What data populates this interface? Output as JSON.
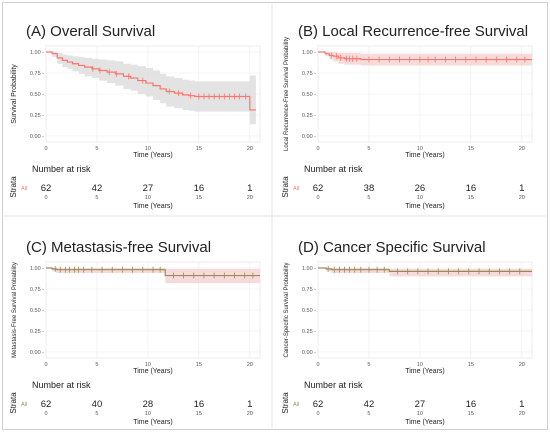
{
  "chart_data": [
    {
      "type": "line",
      "title": "(A) Overall Survival",
      "xlabel": "Time (Years)",
      "ylabel": "Survival Probability",
      "xlim": [
        0,
        21
      ],
      "ylim": [
        0,
        1
      ],
      "xticks": [
        "0",
        "5",
        "10",
        "15",
        "20"
      ],
      "yticks": [
        "0.00 -",
        "0.25 -",
        "0.50 -",
        "0.75 -",
        "1.00 -"
      ],
      "color": "#f8766d",
      "ci_color": "#d9d9d9",
      "series": [
        {
          "x": [
            0,
            0.6,
            1.1,
            1.6,
            2.1,
            2.6,
            3.2,
            3.8,
            4.5,
            5.2,
            6.0,
            6.8,
            7.6,
            8.3,
            9.0,
            9.8,
            10.5,
            11.2,
            11.8,
            12.6,
            13.4,
            14.0,
            14.6,
            20.0,
            20.6
          ],
          "y": [
            1.0,
            0.98,
            0.93,
            0.9,
            0.88,
            0.86,
            0.84,
            0.82,
            0.8,
            0.78,
            0.76,
            0.74,
            0.71,
            0.69,
            0.66,
            0.63,
            0.6,
            0.56,
            0.53,
            0.51,
            0.49,
            0.48,
            0.47,
            0.31,
            0.31
          ]
        }
      ],
      "ci_upper": [
        1.0,
        1.0,
        0.99,
        0.97,
        0.96,
        0.95,
        0.94,
        0.93,
        0.92,
        0.91,
        0.9,
        0.89,
        0.86,
        0.85,
        0.83,
        0.81,
        0.78,
        0.74,
        0.71,
        0.69,
        0.67,
        0.66,
        0.65,
        0.72,
        0.72
      ],
      "ci_lower": [
        1.0,
        0.94,
        0.86,
        0.82,
        0.8,
        0.77,
        0.74,
        0.71,
        0.69,
        0.66,
        0.63,
        0.6,
        0.56,
        0.54,
        0.5,
        0.47,
        0.43,
        0.39,
        0.35,
        0.33,
        0.31,
        0.3,
        0.29,
        0.14,
        0.14
      ],
      "censor_x": [
        4.6,
        5.3,
        6.2,
        6.9,
        8.1,
        9.5,
        12.1,
        13.0,
        14.2,
        15.0,
        15.5,
        16.0,
        16.5,
        17.0,
        17.5,
        18.0,
        18.5,
        19.0,
        19.6
      ],
      "risk_table": {
        "title": "Number at risk",
        "strata_label": "Strata",
        "row_label": "All",
        "counts": [
          "62",
          "42",
          "27",
          "16",
          "1"
        ],
        "ticks": [
          "0",
          "5",
          "10",
          "15",
          "20"
        ],
        "xlabel": "Time (Years)"
      }
    },
    {
      "type": "line",
      "title": "(B) Local Recurrence-free Survival",
      "xlabel": "Time (Years)",
      "ylabel": "Local Recurrence-Free Survival Probability",
      "xlim": [
        0,
        21
      ],
      "ylim": [
        0,
        1
      ],
      "xticks": [
        "0",
        "5",
        "10",
        "15",
        "20"
      ],
      "yticks": [
        "0.00 -",
        "0.25 -",
        "0.50 -",
        "0.75 -",
        "1.00 -"
      ],
      "color": "#f8766d",
      "ci_color": "#f4cfcf",
      "series": [
        {
          "x": [
            0,
            0.7,
            1.1,
            1.5,
            2.0,
            2.6,
            3.5,
            4.2,
            21.0
          ],
          "y": [
            1.0,
            0.98,
            0.96,
            0.95,
            0.93,
            0.92,
            0.92,
            0.91,
            0.91
          ]
        }
      ],
      "ci_upper": [
        1.0,
        1.0,
        1.0,
        1.0,
        0.99,
        0.99,
        0.99,
        0.98,
        0.98
      ],
      "ci_lower": [
        1.0,
        0.95,
        0.91,
        0.89,
        0.86,
        0.85,
        0.85,
        0.84,
        0.84
      ],
      "censor_x": [
        1.3,
        1.8,
        2.2,
        2.8,
        3.1,
        3.4,
        3.8,
        5.0,
        6.0,
        7.0,
        8.0,
        9.0,
        10.0,
        10.8,
        11.5,
        12.5,
        13.5,
        14.5,
        15.5,
        16.5,
        17.5,
        18.5,
        19.5,
        20.3
      ],
      "risk_table": {
        "title": "Number at risk",
        "strata_label": "Strata",
        "row_label": "All",
        "counts": [
          "62",
          "38",
          "26",
          "16",
          "1"
        ],
        "ticks": [
          "0",
          "5",
          "10",
          "15",
          "20"
        ],
        "xlabel": "Time (Years)"
      }
    },
    {
      "type": "line",
      "title": "(C) Metastasis-free Survival",
      "xlabel": "Time (Years)",
      "ylabel": "Metastasis-Free Survival Probability",
      "xlim": [
        0,
        21
      ],
      "ylim": [
        0,
        1
      ],
      "xticks": [
        "0",
        "5",
        "10",
        "15",
        "20"
      ],
      "yticks": [
        "0.00 -",
        "0.25 -",
        "0.50 -",
        "0.75 -",
        "1.00 -"
      ],
      "color": "#9a8a5a",
      "ci_color": "#f4cfcf",
      "series": [
        {
          "x": [
            0,
            0.6,
            1.0,
            11.6,
            11.7,
            21.0
          ],
          "y": [
            1.0,
            0.99,
            0.98,
            0.98,
            0.91,
            0.91
          ]
        }
      ],
      "ci_upper": [
        1.0,
        1.0,
        1.0,
        1.0,
        0.99,
        0.99
      ],
      "ci_lower": [
        1.0,
        0.96,
        0.94,
        0.94,
        0.82,
        0.82
      ],
      "censor_x": [
        0.9,
        1.4,
        1.9,
        2.3,
        2.8,
        3.2,
        3.7,
        4.5,
        5.5,
        6.5,
        7.5,
        8.5,
        9.5,
        10.5,
        11.2,
        12.5,
        13.5,
        14.5,
        15.5,
        16.5,
        17.5,
        18.5,
        19.5,
        20.3
      ],
      "risk_table": {
        "title": "Number at risk",
        "strata_label": "Strata",
        "row_label": "All",
        "counts": [
          "62",
          "40",
          "28",
          "16",
          "1"
        ],
        "ticks": [
          "0",
          "5",
          "10",
          "15",
          "20"
        ],
        "xlabel": "Time (Years)"
      }
    },
    {
      "type": "line",
      "title": "(D) Cancer Specific Survival",
      "xlabel": "Time (Years)",
      "ylabel": "Cancer-Specific Survival Probability",
      "xlim": [
        0,
        21
      ],
      "ylim": [
        0,
        1
      ],
      "xticks": [
        "0",
        "5",
        "10",
        "15",
        "20"
      ],
      "yticks": [
        "0.00 -",
        "0.25 -",
        "0.50 -",
        "0.75 -",
        "1.00 -"
      ],
      "color": "#9a8a5a",
      "ci_color": "#f4cfcf",
      "series": [
        {
          "x": [
            0,
            0.8,
            1.3,
            6.9,
            7.0,
            21.0
          ],
          "y": [
            1.0,
            0.99,
            0.98,
            0.98,
            0.96,
            0.96
          ]
        }
      ],
      "ci_upper": [
        1.0,
        1.0,
        1.0,
        1.0,
        0.99,
        0.99
      ],
      "ci_lower": [
        1.0,
        0.96,
        0.94,
        0.94,
        0.9,
        0.9
      ],
      "censor_x": [
        1.0,
        1.6,
        2.1,
        2.6,
        3.1,
        3.6,
        4.2,
        5.0,
        5.8,
        6.5,
        7.8,
        8.8,
        9.8,
        10.8,
        11.8,
        12.8,
        13.8,
        14.8,
        15.8,
        16.8,
        17.8,
        18.8,
        19.8
      ],
      "risk_table": {
        "title": "Number at risk",
        "strata_label": "Strata",
        "row_label": "All",
        "counts": [
          "62",
          "42",
          "27",
          "16",
          "1"
        ],
        "ticks": [
          "0",
          "5",
          "10",
          "15",
          "20"
        ],
        "xlabel": "Time (Years)"
      }
    }
  ]
}
